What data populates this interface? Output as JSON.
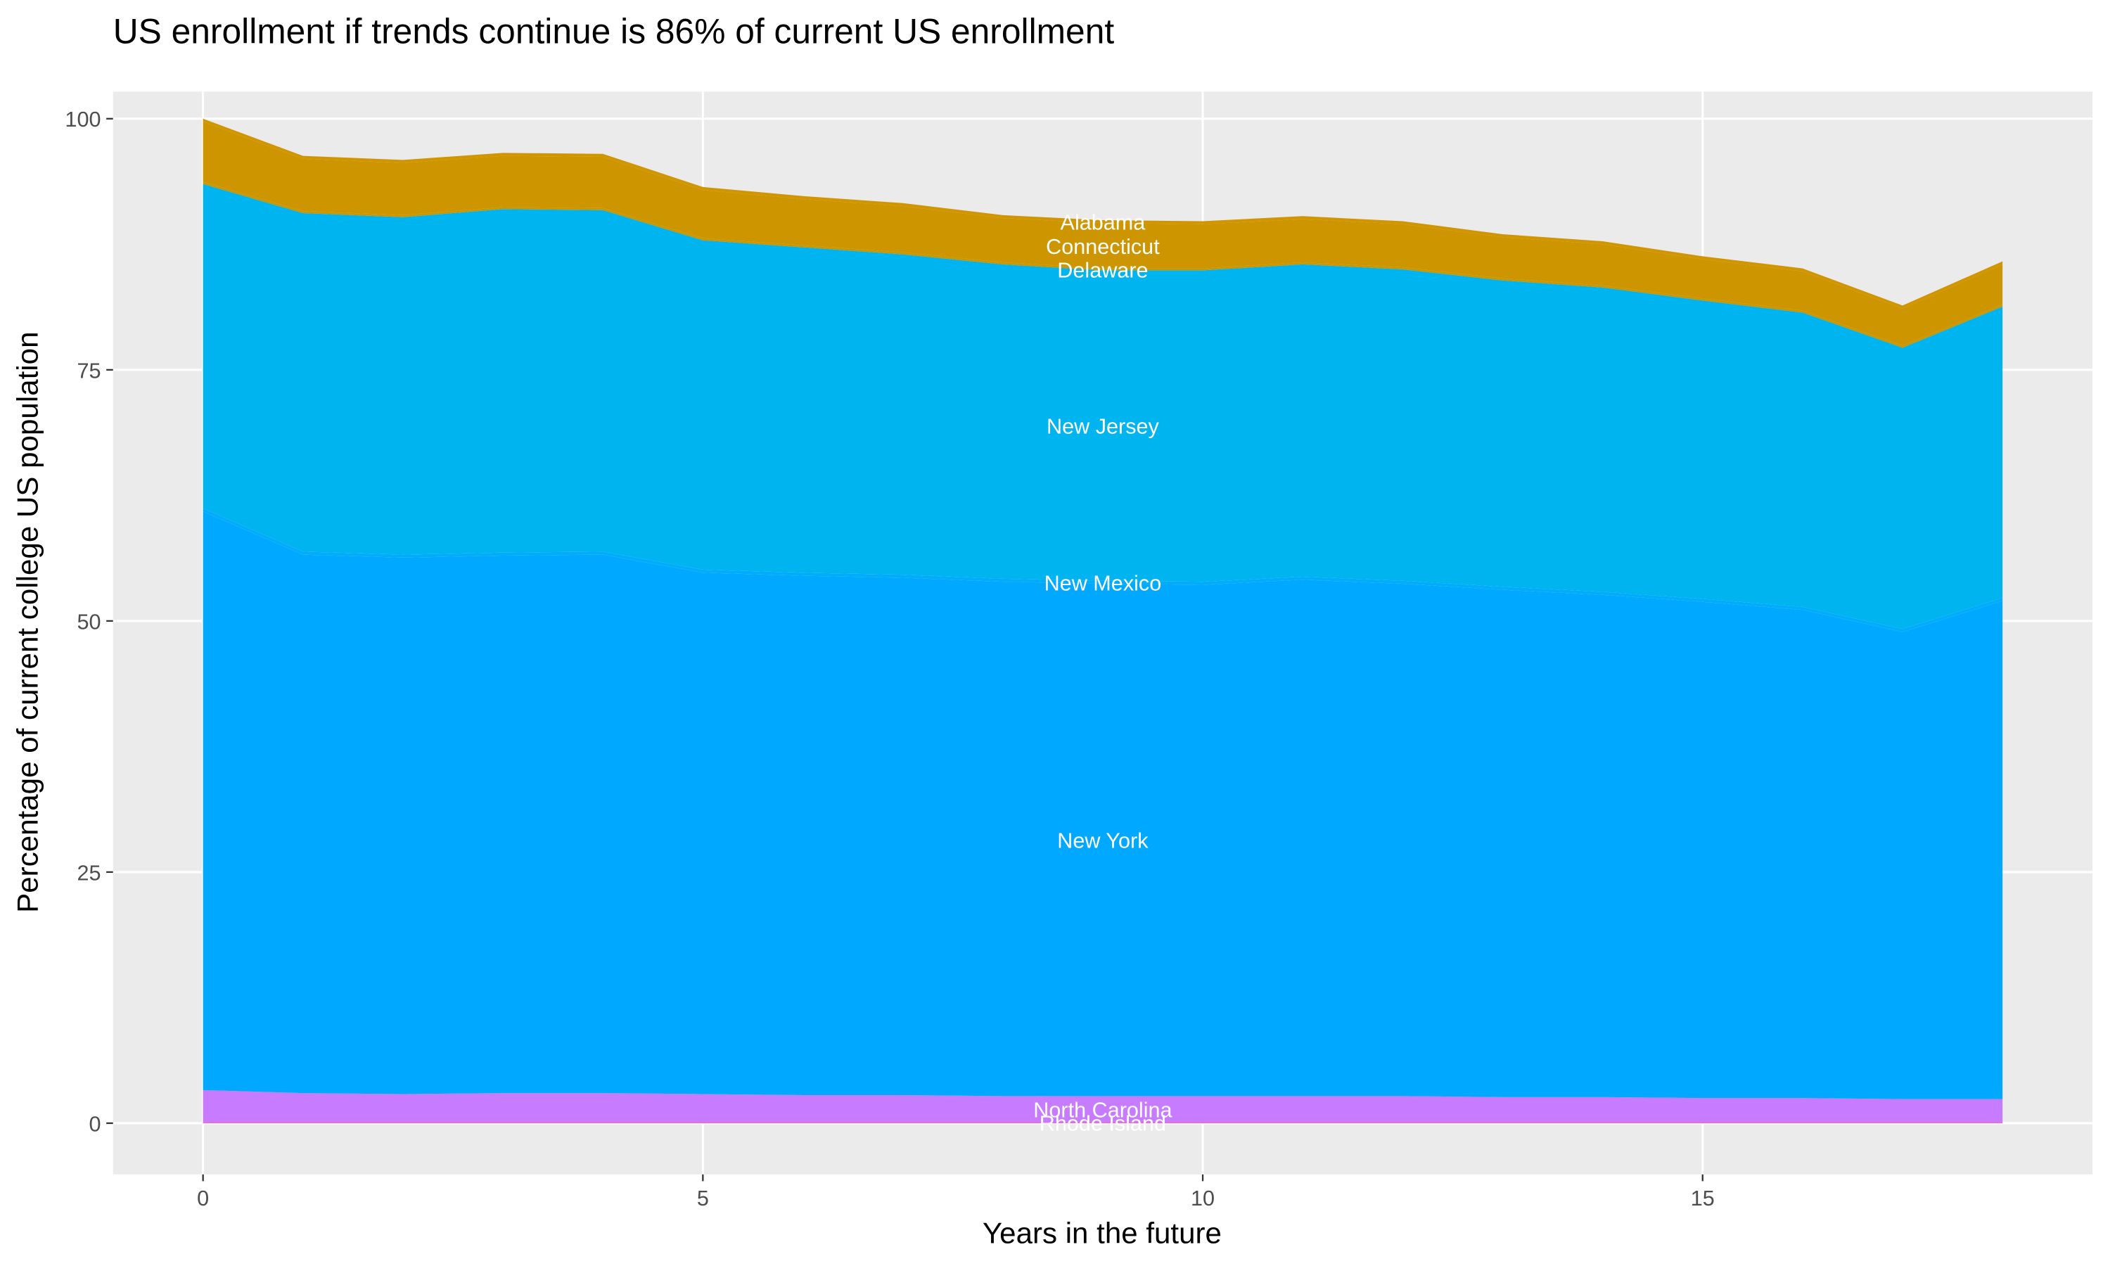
{
  "chart_data": {
    "type": "stacked_area",
    "title": "US enrollment if trends continue is 86% of current US enrollment",
    "x_label": "Years in the future",
    "y_label": "Percentage of current college US population",
    "x": [
      0,
      1,
      2,
      3,
      4,
      5,
      6,
      7,
      8,
      9,
      10,
      11,
      12,
      13,
      14,
      15,
      16,
      17,
      18
    ],
    "xlim": [
      -0.9,
      18.9
    ],
    "xticks": [
      0,
      5,
      10,
      15
    ],
    "ylim": [
      -5.1,
      102.7
    ],
    "yticks": [
      0,
      25,
      50,
      75,
      100
    ],
    "grid": true,
    "label_x": 9,
    "series": [
      {
        "name": "Rhode Island",
        "color": "#FF61CC",
        "values": [
          0.1,
          0.1,
          0.1,
          0.1,
          0.1,
          0.1,
          0.1,
          0.1,
          0.1,
          0.1,
          0.1,
          0.1,
          0.1,
          0.1,
          0.1,
          0.1,
          0.1,
          0.1,
          0.1
        ]
      },
      {
        "name": "North Carolina",
        "color": "#C77CFF",
        "values": [
          3.2,
          2.9,
          2.8,
          2.9,
          2.9,
          2.8,
          2.7,
          2.7,
          2.6,
          2.6,
          2.6,
          2.6,
          2.6,
          2.5,
          2.5,
          2.4,
          2.4,
          2.3,
          2.3
        ]
      },
      {
        "name": "New York",
        "color": "#00A9FF",
        "values": [
          57.6,
          53.6,
          53.4,
          53.5,
          53.6,
          51.9,
          51.7,
          51.5,
          51.2,
          51.0,
          50.9,
          51.4,
          51.0,
          50.5,
          50.0,
          49.4,
          48.6,
          46.5,
          49.6
        ]
      },
      {
        "name": "New Mexico",
        "color": "#00ACFB",
        "values": [
          0.3,
          0.3,
          0.3,
          0.3,
          0.3,
          0.3,
          0.3,
          0.3,
          0.3,
          0.3,
          0.3,
          0.3,
          0.3,
          0.3,
          0.3,
          0.3,
          0.3,
          0.3,
          0.3
        ]
      },
      {
        "name": "New Jersey",
        "color": "#00B4F0",
        "values": [
          32.3,
          33.7,
          33.6,
          34.2,
          34.0,
          32.8,
          32.4,
          31.9,
          31.3,
          30.9,
          31.0,
          31.1,
          31.0,
          30.5,
          30.3,
          29.7,
          29.3,
          28.0,
          29.0
        ]
      },
      {
        "name": "Delaware",
        "color": "#C99700",
        "values": [
          0.2,
          0.2,
          0.2,
          0.2,
          0.2,
          0.2,
          0.2,
          0.2,
          0.2,
          0.2,
          0.2,
          0.2,
          0.2,
          0.2,
          0.2,
          0.2,
          0.2,
          0.2,
          0.2
        ]
      },
      {
        "name": "Connecticut",
        "color": "#CD9600",
        "values": [
          6.0,
          5.2,
          5.2,
          5.1,
          5.1,
          4.8,
          4.6,
          4.6,
          4.4,
          4.5,
          4.4,
          4.3,
          4.3,
          4.1,
          4.1,
          3.9,
          3.9,
          3.7,
          4.0
        ]
      },
      {
        "name": "Alabama",
        "color": "#D09500",
        "values": [
          0.3,
          0.3,
          0.3,
          0.3,
          0.3,
          0.3,
          0.3,
          0.3,
          0.3,
          0.3,
          0.3,
          0.3,
          0.3,
          0.3,
          0.3,
          0.3,
          0.3,
          0.3,
          0.3
        ]
      }
    ]
  }
}
